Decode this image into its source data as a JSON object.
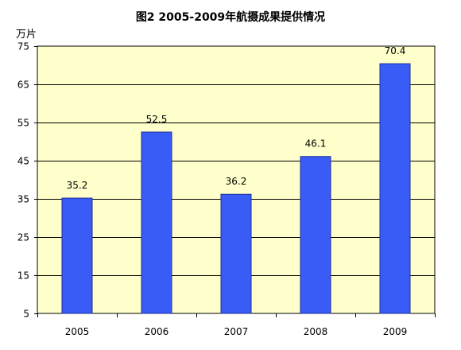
{
  "chart_data": {
    "type": "bar",
    "title": "图2   2005-2009年航摄成果提供情况",
    "unit_label": "万片",
    "xlabel": "",
    "ylabel": "",
    "categories": [
      "2005",
      "2006",
      "2007",
      "2008",
      "2009"
    ],
    "values": [
      35.2,
      52.5,
      36.2,
      46.1,
      70.4
    ],
    "data_labels": [
      "35.2",
      "52.5",
      "36.2",
      "46.1",
      "70.4"
    ],
    "ylim": [
      5,
      75
    ],
    "yticks": [
      "5",
      "15",
      "25",
      "35",
      "45",
      "55",
      "65",
      "75"
    ],
    "grid": true,
    "legend": "none",
    "colors": {
      "bar": "#3a5cf6",
      "bar_edge": "#1d2f99",
      "plot_bg": "#ffffcc",
      "grid": "#000000",
      "text": "#000000"
    }
  }
}
